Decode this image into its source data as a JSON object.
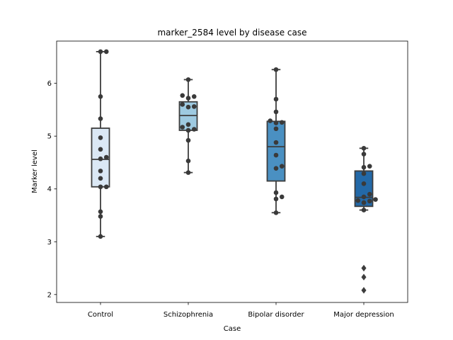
{
  "chart_data": {
    "type": "box",
    "title": "marker_2584 level by disease case",
    "xlabel": "Case",
    "ylabel": "Marker level",
    "categories": [
      "Control",
      "Schizophrenia",
      "Bipolar disorder",
      "Major depression"
    ],
    "ylim": [
      1.85,
      6.8
    ],
    "yticks": [
      2,
      3,
      4,
      5,
      6
    ],
    "grid": false,
    "colors": [
      "#dbe8f5",
      "#9ecae1",
      "#4a90c2",
      "#2369a8"
    ],
    "boxes": [
      {
        "category": "Control",
        "whisker_low": 3.1,
        "q1": 4.04,
        "median": 4.56,
        "q3": 5.15,
        "whisker_high": 6.6,
        "outliers": [],
        "points": [
          6.6,
          6.6,
          5.75,
          5.33,
          4.97,
          4.75,
          4.6,
          4.57,
          4.34,
          4.2,
          4.04,
          4.04,
          3.57,
          3.48,
          3.1
        ]
      },
      {
        "category": "Schizophrenia",
        "whisker_low": 4.31,
        "q1": 5.11,
        "median": 5.39,
        "q3": 5.65,
        "whisker_high": 6.07,
        "outliers": [],
        "points": [
          6.07,
          5.77,
          5.75,
          5.72,
          5.6,
          5.56,
          5.55,
          5.22,
          5.17,
          5.13,
          5.11,
          4.92,
          4.53,
          4.31
        ]
      },
      {
        "category": "Bipolar disorder",
        "whisker_low": 3.55,
        "q1": 4.15,
        "median": 4.8,
        "q3": 5.28,
        "whisker_high": 6.26,
        "outliers": [],
        "points": [
          6.26,
          5.7,
          5.46,
          5.29,
          5.26,
          5.25,
          5.14,
          4.88,
          4.64,
          4.43,
          4.39,
          3.93,
          3.85,
          3.81,
          3.55
        ]
      },
      {
        "category": "Major depression",
        "whisker_low": 3.6,
        "q1": 3.67,
        "median": 3.84,
        "q3": 4.34,
        "whisker_high": 4.77,
        "outliers": [
          2.5,
          2.33,
          2.08
        ],
        "points": [
          4.77,
          4.66,
          4.43,
          4.41,
          4.29,
          4.1,
          3.9,
          3.85,
          3.8,
          3.78,
          3.77,
          3.74,
          3.6
        ]
      }
    ]
  }
}
